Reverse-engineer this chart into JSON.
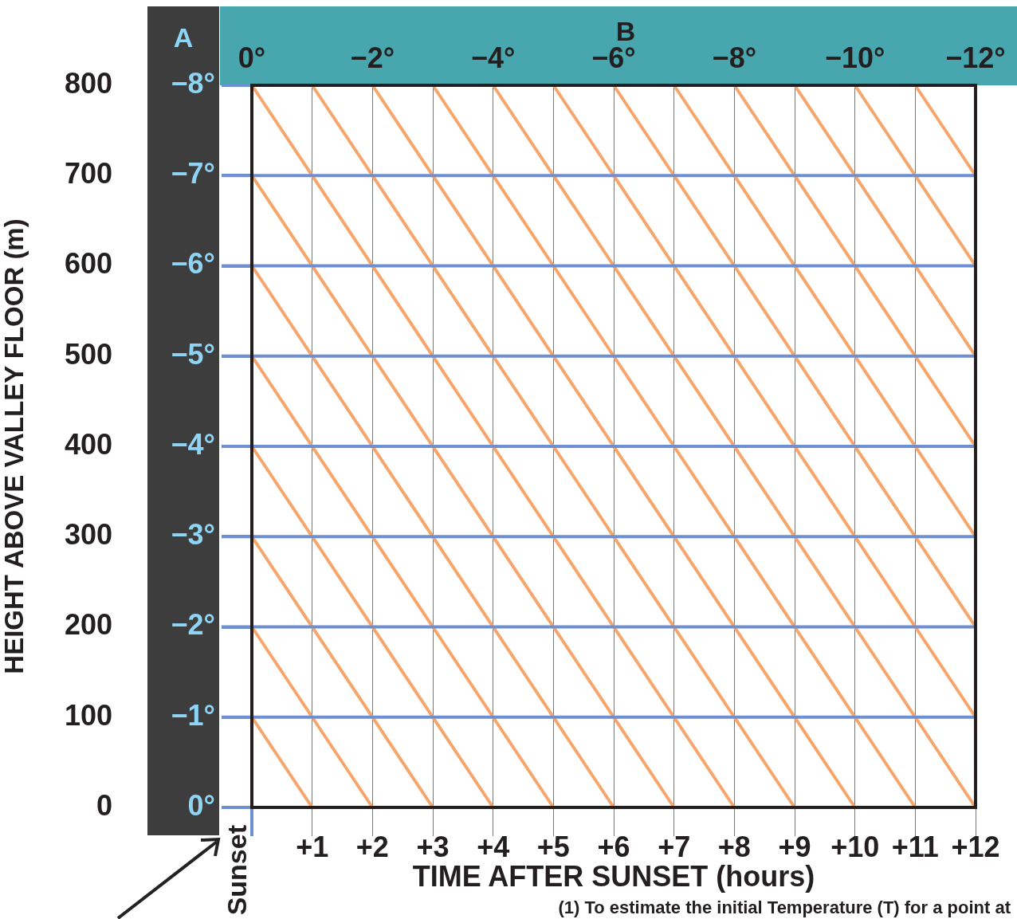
{
  "chart_data": {
    "type": "line",
    "xlabel": "TIME AFTER SUNSET (hours)",
    "ylabel": "HEIGHT ABOVE VALLEY FLOOR (m)",
    "x2label": "B",
    "y2label": "A",
    "xlim": [
      0,
      12
    ],
    "xticks": [
      {
        "value": 0,
        "label": null
      },
      {
        "value": 1,
        "label": "+1"
      },
      {
        "value": 2,
        "label": "+2"
      },
      {
        "value": 3,
        "label": "+3"
      },
      {
        "value": 4,
        "label": "+4"
      },
      {
        "value": 5,
        "label": "+5"
      },
      {
        "value": 6,
        "label": "+6"
      },
      {
        "value": 7,
        "label": "+7"
      },
      {
        "value": 8,
        "label": "+8"
      },
      {
        "value": 9,
        "label": "+9"
      },
      {
        "value": 10,
        "label": "+10"
      },
      {
        "value": 11,
        "label": "+11"
      },
      {
        "value": 12,
        "label": "+12"
      }
    ],
    "ylim": [
      0,
      800
    ],
    "yticks": [
      0,
      100,
      200,
      300,
      400,
      500,
      600,
      700,
      800
    ],
    "x2lim": [
      0,
      -12
    ],
    "x2ticks": [
      {
        "value": 0,
        "label": "0°"
      },
      {
        "value": -2,
        "label": "−2°"
      },
      {
        "value": -4,
        "label": "−4°"
      },
      {
        "value": -6,
        "label": "−6°"
      },
      {
        "value": -8,
        "label": "−8°"
      },
      {
        "value": -10,
        "label": "−10°"
      },
      {
        "value": -12,
        "label": "−12°"
      }
    ],
    "y2lim": [
      0,
      -8
    ],
    "y2ticks": [
      {
        "value": 0,
        "label": "0°"
      },
      {
        "value": -1,
        "label": "−1°"
      },
      {
        "value": -2,
        "label": "−2°"
      },
      {
        "value": -3,
        "label": "−3°"
      },
      {
        "value": -4,
        "label": "−4°"
      },
      {
        "value": -5,
        "label": "−5°"
      },
      {
        "value": -6,
        "label": "−6°"
      },
      {
        "value": -7,
        "label": "−7°"
      },
      {
        "value": -8,
        "label": "−8°"
      }
    ],
    "grid": "x",
    "marker": "none",
    "line_style": "solid",
    "ref_lines": [
      {
        "axis": "y",
        "value": 100,
        "color": "#6f8fd3"
      },
      {
        "axis": "y",
        "value": 200,
        "color": "#6f8fd3"
      },
      {
        "axis": "y",
        "value": 300,
        "color": "#6f8fd3"
      },
      {
        "axis": "y",
        "value": 400,
        "color": "#6f8fd3"
      },
      {
        "axis": "y",
        "value": 500,
        "color": "#6f8fd3"
      },
      {
        "axis": "y",
        "value": 600,
        "color": "#6f8fd3"
      },
      {
        "axis": "y",
        "value": 700,
        "color": "#6f8fd3"
      }
    ],
    "annotations": [
      "Sunset",
      "(1) To estimate the initial Temperature (T) for a point at"
    ],
    "series": [
      {
        "color": "#f6a56b",
        "x": [
          0,
          1
        ],
        "values": [
          100,
          0
        ]
      },
      {
        "color": "#f6a56b",
        "x": [
          0,
          2
        ],
        "values": [
          200,
          0
        ]
      },
      {
        "color": "#f6a56b",
        "x": [
          0,
          3
        ],
        "values": [
          300,
          0
        ]
      },
      {
        "color": "#f6a56b",
        "x": [
          0,
          4
        ],
        "values": [
          400,
          0
        ]
      },
      {
        "color": "#f6a56b",
        "x": [
          0,
          5
        ],
        "values": [
          500,
          0
        ]
      },
      {
        "color": "#f6a56b",
        "x": [
          0,
          6
        ],
        "values": [
          600,
          0
        ]
      },
      {
        "color": "#f6a56b",
        "x": [
          0,
          7
        ],
        "values": [
          700,
          0
        ]
      },
      {
        "color": "#f6a56b",
        "x": [
          0,
          8
        ],
        "values": [
          800,
          0
        ]
      },
      {
        "color": "#f6a56b",
        "x": [
          1,
          9
        ],
        "values": [
          800,
          0
        ]
      },
      {
        "color": "#f6a56b",
        "x": [
          2,
          10
        ],
        "values": [
          800,
          0
        ]
      },
      {
        "color": "#f6a56b",
        "x": [
          3,
          11
        ],
        "values": [
          800,
          0
        ]
      },
      {
        "color": "#f6a56b",
        "x": [
          4,
          12
        ],
        "values": [
          800,
          0
        ]
      },
      {
        "color": "#f6a56b",
        "x": [
          5,
          12
        ],
        "values": [
          800,
          100
        ]
      },
      {
        "color": "#f6a56b",
        "x": [
          6,
          12
        ],
        "values": [
          800,
          200
        ]
      },
      {
        "color": "#f6a56b",
        "x": [
          7,
          12
        ],
        "values": [
          800,
          300
        ]
      },
      {
        "color": "#f6a56b",
        "x": [
          8,
          12
        ],
        "values": [
          800,
          400
        ]
      },
      {
        "color": "#f6a56b",
        "x": [
          9,
          12
        ],
        "values": [
          800,
          500
        ]
      },
      {
        "color": "#f6a56b",
        "x": [
          10,
          12
        ],
        "values": [
          800,
          600
        ]
      },
      {
        "color": "#f6a56b",
        "x": [
          11,
          12
        ],
        "values": [
          800,
          700
        ]
      }
    ]
  }
}
